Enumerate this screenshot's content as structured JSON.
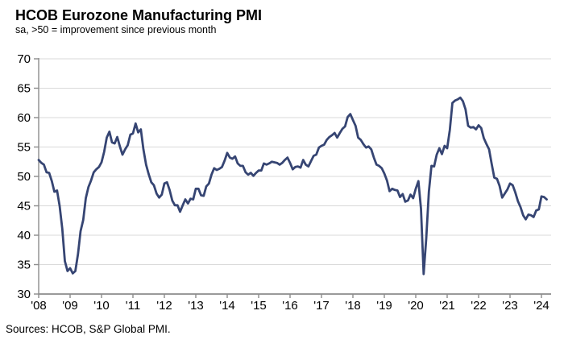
{
  "title": "HCOB Eurozone Manufacturing PMI",
  "subtitle": "sa, >50 = improvement since previous month",
  "source": "Sources: HCOB, S&P Global PMI.",
  "chart_data": {
    "type": "line",
    "series_name": "Eurozone Manufacturing PMI (sa)",
    "frequency": "monthly",
    "start_year": 2008,
    "start_month": 1,
    "title": "HCOB Eurozone Manufacturing PMI",
    "subtitle": "sa, >50 = improvement since previous month",
    "xlabel": "",
    "ylabel": "",
    "ylim": [
      30,
      70
    ],
    "y_ticks": [
      30,
      35,
      40,
      45,
      50,
      55,
      60,
      65,
      70
    ],
    "x_tick_labels": [
      "'08",
      "'09",
      "'10",
      "'11",
      "'12",
      "'13",
      "'14",
      "'15",
      "'16",
      "'17",
      "'18",
      "'19",
      "'20",
      "'21",
      "'22",
      "'23",
      "'24"
    ],
    "grid": "horizontal",
    "legend": "none",
    "line_color": "#364573",
    "gridline_color": "#d9d9d9",
    "axis_color": "#8c8c8c",
    "values": [
      52.8,
      52.3,
      52.0,
      50.7,
      50.6,
      49.2,
      47.4,
      47.6,
      45.0,
      41.1,
      35.6,
      33.9,
      34.4,
      33.5,
      33.9,
      36.8,
      40.7,
      42.6,
      46.3,
      48.2,
      49.3,
      50.7,
      51.2,
      51.6,
      52.4,
      54.2,
      56.6,
      57.6,
      55.8,
      55.6,
      56.7,
      55.1,
      53.7,
      54.6,
      55.3,
      57.1,
      57.3,
      59.0,
      57.5,
      58.0,
      54.6,
      52.0,
      50.4,
      49.0,
      48.5,
      47.1,
      46.4,
      46.9,
      48.8,
      49.0,
      47.7,
      45.9,
      45.1,
      45.1,
      44.0,
      45.1,
      46.1,
      45.4,
      46.2,
      46.1,
      47.9,
      47.9,
      46.8,
      46.7,
      48.3,
      48.8,
      50.3,
      51.4,
      51.1,
      51.3,
      51.6,
      52.7,
      54.0,
      53.2,
      53.0,
      53.4,
      52.2,
      51.8,
      51.8,
      50.7,
      50.3,
      50.6,
      50.1,
      50.6,
      51.0,
      51.0,
      52.2,
      52.0,
      52.2,
      52.5,
      52.4,
      52.3,
      52.0,
      52.3,
      52.8,
      53.2,
      52.3,
      51.2,
      51.6,
      51.7,
      51.5,
      52.8,
      52.0,
      51.7,
      52.6,
      53.5,
      53.7,
      54.9,
      55.2,
      55.4,
      56.2,
      56.7,
      57.0,
      57.4,
      56.6,
      57.4,
      58.1,
      58.5,
      60.1,
      60.6,
      59.6,
      58.6,
      56.6,
      56.2,
      55.5,
      54.9,
      55.1,
      54.6,
      53.2,
      52.0,
      51.8,
      51.4,
      50.5,
      49.3,
      47.5,
      47.9,
      47.7,
      47.6,
      46.5,
      47.0,
      45.7,
      45.9,
      46.9,
      46.3,
      47.9,
      49.2,
      44.5,
      33.4,
      39.4,
      47.4,
      51.8,
      51.7,
      53.7,
      54.8,
      53.8,
      55.2,
      54.8,
      57.9,
      62.5,
      62.9,
      63.1,
      63.4,
      62.8,
      61.4,
      58.6,
      58.3,
      58.4,
      58.0,
      58.7,
      58.2,
      56.5,
      55.5,
      54.6,
      52.1,
      49.8,
      49.6,
      48.4,
      46.4,
      47.1,
      47.8,
      48.8,
      48.5,
      47.3,
      45.8,
      44.8,
      43.4,
      42.7,
      43.5,
      43.4,
      43.1,
      44.2,
      44.4,
      46.6,
      46.5,
      46.1
    ]
  }
}
